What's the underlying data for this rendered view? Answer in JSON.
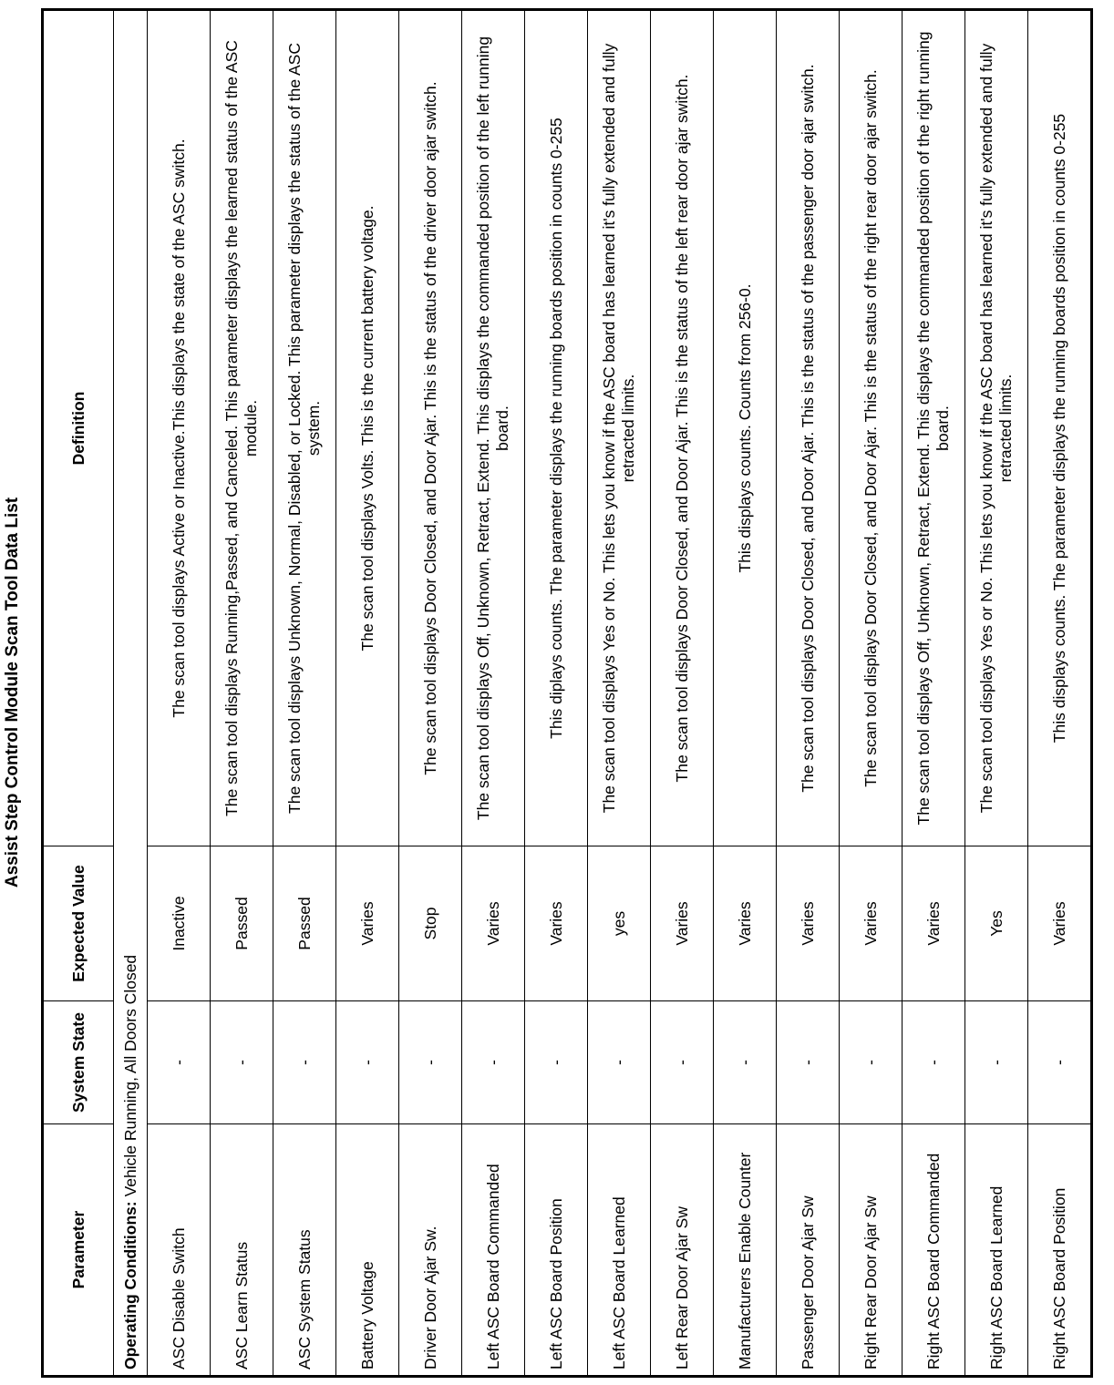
{
  "title": "Assist Step Control Module Scan Tool Data List",
  "headers": {
    "parameter": "Parameter",
    "system_state": "System State",
    "expected_value": "Expected Value",
    "definition": "Definition"
  },
  "operating_conditions": {
    "label": "Operating Conditions:",
    "value": "Vehicle Running, All Doors Closed"
  },
  "rows": [
    {
      "parameter": "ASC Disable Switch",
      "system_state": "-",
      "expected_value": "Inactive",
      "definition": "The scan tool displays Active or Inactive.This displays the state of the ASC switch."
    },
    {
      "parameter": "ASC Learn Status",
      "system_state": "-",
      "expected_value": "Passed",
      "definition": "The scan tool displays Running,Passed, and Canceled. This parameter displays the learned status of the ASC module."
    },
    {
      "parameter": "ASC System Status",
      "system_state": "-",
      "expected_value": "Passed",
      "definition": "The scan tool displays Unknown, Normal, Disabled, or Locked. This parameter displays the status of the ASC system."
    },
    {
      "parameter": "Battery Voltage",
      "system_state": "-",
      "expected_value": "Varies",
      "definition": "The scan tool displays Volts. This is the current battery voltage."
    },
    {
      "parameter": "Driver Door Ajar Sw.",
      "system_state": "-",
      "expected_value": "Stop",
      "definition": "The scan tool displays Door Closed, and Door Ajar. This is the status of the driver door ajar switch."
    },
    {
      "parameter": "Left ASC Board Commanded",
      "system_state": "-",
      "expected_value": "Varies",
      "definition": "The scan tool displays Off, Unknown, Retract, Extend. This displays the commanded position of the left running board."
    },
    {
      "parameter": "Left ASC Board Position",
      "system_state": "-",
      "expected_value": "Varies",
      "definition": "This diplays counts. The parameter displays the running boards position in counts 0-255"
    },
    {
      "parameter": "Left ASC Board Learned",
      "system_state": "-",
      "expected_value": "yes",
      "definition": "The scan tool displays Yes or No. This lets you know if the ASC board has learned it's fully extended and fully retracted limits."
    },
    {
      "parameter": "Left Rear Door Ajar Sw",
      "system_state": "-",
      "expected_value": "Varies",
      "definition": "The scan tool displays Door Closed, and Door Ajar. This is the status of the left rear door ajar switch."
    },
    {
      "parameter": "Manufacturers Enable Counter",
      "system_state": "-",
      "expected_value": "Varies",
      "definition": "This displays counts. Counts from 256-0."
    },
    {
      "parameter": "Passenger Door Ajar Sw",
      "system_state": "-",
      "expected_value": "Varies",
      "definition": "The scan tool displays Door Closed, and Door Ajar. This is the status of the passenger door ajar switch."
    },
    {
      "parameter": "Right Rear Door Ajar Sw",
      "system_state": "-",
      "expected_value": "Varies",
      "definition": "The scan tool displays Door Closed, and Door Ajar. This is the status of the right rear door ajar switch."
    },
    {
      "parameter": "Right ASC Board Commanded",
      "system_state": "-",
      "expected_value": "Varies",
      "definition": "The scan tool displays Off, Unknown, Retract, Extend. This displays the commanded position of the right running board."
    },
    {
      "parameter": "Right ASC Board Learned",
      "system_state": "-",
      "expected_value": "Yes",
      "definition": "The scan tool displays Yes or No. This lets you know if the ASC board has learned it's fully extended and fully retracted limits."
    },
    {
      "parameter": "Right ASC Board Position",
      "system_state": "-",
      "expected_value": "Varies",
      "definition": "This displays counts. The parameter displays the running boards position in counts 0-255"
    }
  ]
}
